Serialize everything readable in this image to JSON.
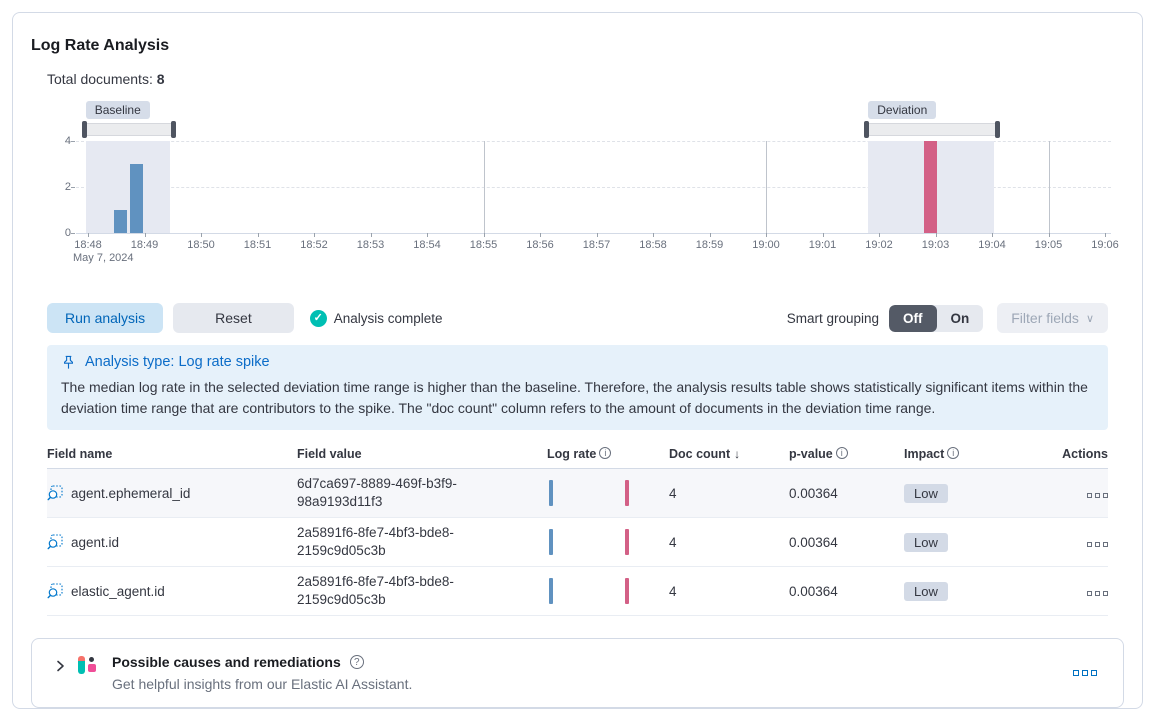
{
  "panel": {
    "title": "Log Rate Analysis",
    "total_documents_label": "Total documents:",
    "total_documents_value": "8"
  },
  "chart_data": {
    "type": "bar",
    "title": "Document count over time",
    "x_axis": {
      "tick_labels": [
        "18:48",
        "18:49",
        "18:50",
        "18:51",
        "18:52",
        "18:53",
        "18:54",
        "18:55",
        "18:56",
        "18:57",
        "18:58",
        "18:59",
        "19:00",
        "19:01",
        "19:02",
        "19:03",
        "19:04",
        "19:05",
        "19:06"
      ],
      "date_label": "May 7, 2024",
      "major_grid_minutes": [
        7,
        12,
        17
      ]
    },
    "y_axis": {
      "ticks": [
        0,
        2,
        4
      ],
      "max": 4
    },
    "baseline": {
      "label": "Baseline",
      "color": "#6092C0",
      "region": {
        "start_min": -0.04,
        "end_min": 1.45
      },
      "brush": {
        "start_min": -0.07,
        "end_min": 1.52
      },
      "bars": [
        {
          "time": "18:48:33",
          "offset_min": 0.58,
          "value": 1
        },
        {
          "time": "18:48:50",
          "offset_min": 0.85,
          "value": 3
        }
      ]
    },
    "deviation": {
      "label": "Deviation",
      "color": "#D36086",
      "region": {
        "start_min": 13.81,
        "end_min": 16.03
      },
      "brush": {
        "start_min": 13.77,
        "end_min": 16.11
      },
      "bars": [
        {
          "time": "19:03:00",
          "offset_min": 14.92,
          "value": 4
        }
      ]
    }
  },
  "controls": {
    "run_button": "Run analysis",
    "reset_button": "Reset",
    "status": "Analysis complete",
    "smart_grouping_label": "Smart grouping",
    "toggle_off": "Off",
    "toggle_on": "On",
    "filter_fields_button": "Filter fields"
  },
  "callout": {
    "title": "Analysis type: Log rate spike",
    "body": "The median log rate in the selected deviation time range is higher than the baseline. Therefore, the analysis results table shows statistically significant items within the deviation time range that are contributors to the spike. The \"doc count\" column refers to the amount of documents in the deviation time range."
  },
  "table": {
    "headers": {
      "field_name": "Field name",
      "field_value": "Field value",
      "log_rate": "Log rate",
      "doc_count": "Doc count",
      "p_value": "p-value",
      "impact": "Impact",
      "actions": "Actions"
    },
    "rows": [
      {
        "field_name": "agent.ephemeral_id",
        "field_value": "6d7ca697-8889-469f-b3f9-98a9193d11f3",
        "doc_count": "4",
        "p_value": "0.00364",
        "impact": "Low"
      },
      {
        "field_name": "agent.id",
        "field_value": "2a5891f6-8fe7-4bf3-bde8-2159c9d05c3b",
        "doc_count": "4",
        "p_value": "0.00364",
        "impact": "Low"
      },
      {
        "field_name": "elastic_agent.id",
        "field_value": "2a5891f6-8fe7-4bf3-bde8-2159c9d05c3b",
        "doc_count": "4",
        "p_value": "0.00364",
        "impact": "Low"
      }
    ],
    "mini_chart_colors": {
      "baseline": "#6092C0",
      "deviation": "#D36086"
    }
  },
  "footer": {
    "title": "Possible causes and remediations",
    "subtitle": "Get helpful insights from our Elastic AI Assistant."
  },
  "icons": {
    "check": "✓",
    "info": "i",
    "help": "?",
    "sort_down": "↓",
    "caret": "∨"
  },
  "colors": {
    "baseline_bar": "#6092C0",
    "deviation_bar": "#D36086",
    "selection_region": "#e6e9f2",
    "primary": "#0071c2",
    "success": "#00bfb3"
  }
}
